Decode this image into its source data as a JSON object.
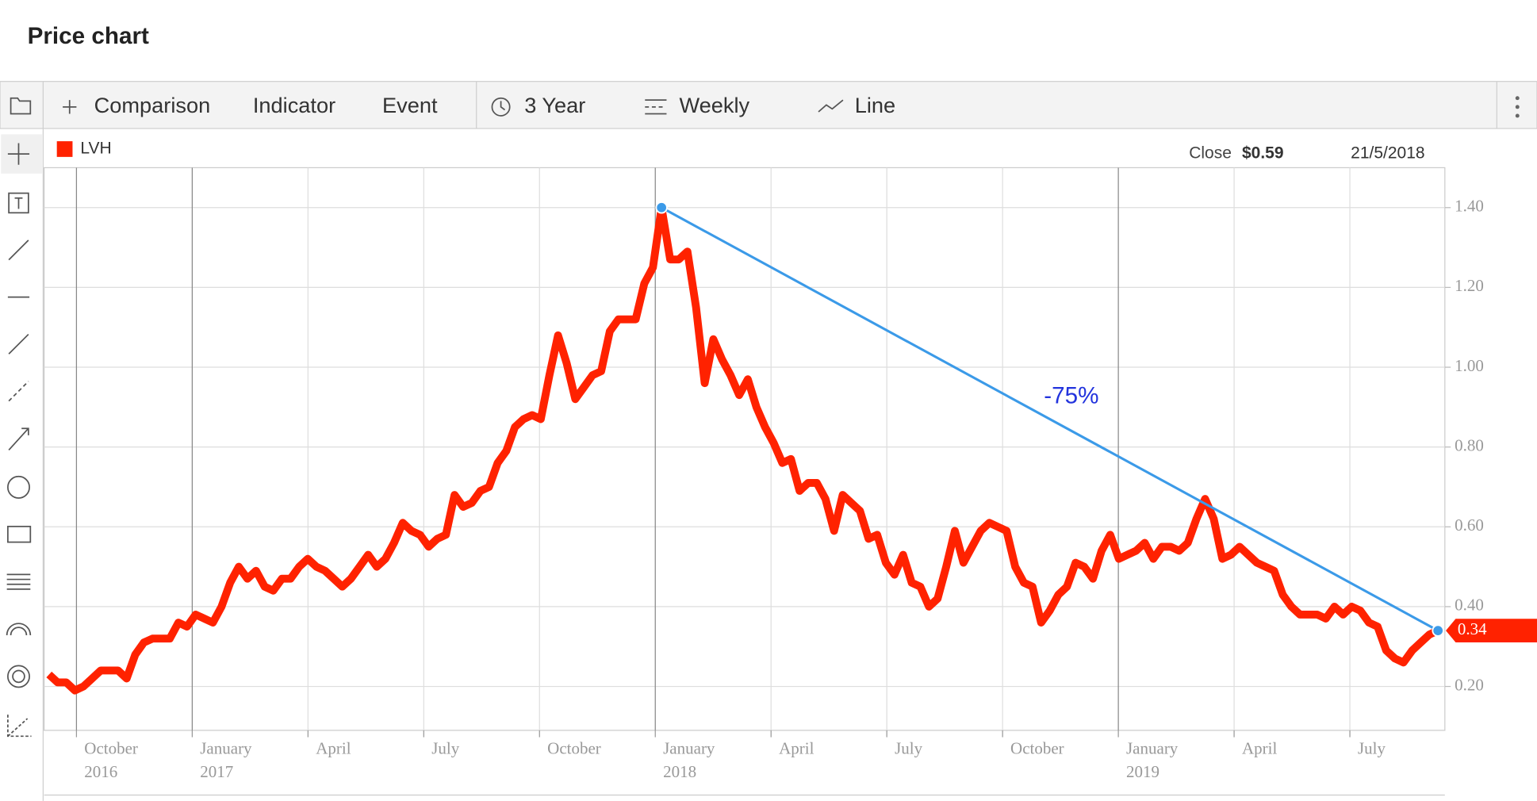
{
  "header": {
    "title": "Price chart"
  },
  "toolbar": {
    "items": [
      "Comparison",
      "Indicator",
      "Event",
      "3 Year",
      "Weekly",
      "Line"
    ]
  },
  "tooltip": {
    "label": "Close",
    "value": "$0.59",
    "date": "21/5/2018"
  },
  "chart_data": {
    "type": "line",
    "series": [
      {
        "name": "LVH",
        "color": "#ff2200",
        "current_value": 0.34,
        "values": [
          0.23,
          0.21,
          0.21,
          0.19,
          0.2,
          0.22,
          0.24,
          0.24,
          0.24,
          0.22,
          0.28,
          0.31,
          0.32,
          0.32,
          0.32,
          0.36,
          0.35,
          0.38,
          0.37,
          0.36,
          0.4,
          0.46,
          0.5,
          0.47,
          0.49,
          0.45,
          0.44,
          0.47,
          0.47,
          0.5,
          0.52,
          0.5,
          0.49,
          0.47,
          0.45,
          0.47,
          0.5,
          0.53,
          0.5,
          0.52,
          0.56,
          0.61,
          0.59,
          0.58,
          0.55,
          0.57,
          0.58,
          0.68,
          0.65,
          0.66,
          0.69,
          0.7,
          0.76,
          0.79,
          0.85,
          0.87,
          0.88,
          0.87,
          0.98,
          1.08,
          1.01,
          0.92,
          0.95,
          0.98,
          0.99,
          1.09,
          1.12,
          1.12,
          1.12,
          1.21,
          1.25,
          1.4,
          1.27,
          1.27,
          1.29,
          1.15,
          0.96,
          1.07,
          1.02,
          0.98,
          0.93,
          0.97,
          0.9,
          0.85,
          0.81,
          0.76,
          0.77,
          0.69,
          0.71,
          0.71,
          0.67,
          0.59,
          0.68,
          0.66,
          0.64,
          0.57,
          0.58,
          0.51,
          0.48,
          0.53,
          0.46,
          0.45,
          0.4,
          0.42,
          0.5,
          0.59,
          0.51,
          0.55,
          0.59,
          0.61,
          0.6,
          0.59,
          0.5,
          0.46,
          0.45,
          0.36,
          0.39,
          0.43,
          0.45,
          0.51,
          0.5,
          0.47,
          0.54,
          0.58,
          0.52,
          0.53,
          0.54,
          0.56,
          0.52,
          0.55,
          0.55,
          0.54,
          0.56,
          0.62,
          0.67,
          0.62,
          0.52,
          0.53,
          0.55,
          0.53,
          0.51,
          0.5,
          0.49,
          0.43,
          0.4,
          0.38,
          0.38,
          0.38,
          0.37,
          0.4,
          0.38,
          0.4,
          0.39,
          0.36,
          0.35,
          0.29,
          0.27,
          0.26,
          0.29,
          0.31,
          0.33,
          0.34
        ]
      }
    ],
    "trendline": {
      "color": "#3b9ae8",
      "label": "-75%",
      "label_color": "#2233dd"
    },
    "ylim": [
      0.09,
      1.5
    ],
    "yticks": [
      {
        "value": 0.2,
        "label": "0.20"
      },
      {
        "value": 0.4,
        "label": "0.40"
      },
      {
        "value": 0.6,
        "label": "0.60"
      },
      {
        "value": 0.8,
        "label": "0.80"
      },
      {
        "value": 1.0,
        "label": "1.00"
      },
      {
        "value": 1.2,
        "label": "1.20"
      },
      {
        "value": 1.4,
        "label": "1.40"
      }
    ],
    "xticks": [
      {
        "label": "October",
        "year": "2016"
      },
      {
        "label": "January",
        "year": "2017"
      },
      {
        "label": "April"
      },
      {
        "label": "July"
      },
      {
        "label": "October"
      },
      {
        "label": "January",
        "year": "2018"
      },
      {
        "label": "April"
      },
      {
        "label": "July"
      },
      {
        "label": "October"
      },
      {
        "label": "January",
        "year": "2019"
      },
      {
        "label": "April"
      },
      {
        "label": "July"
      }
    ],
    "grid": true
  }
}
